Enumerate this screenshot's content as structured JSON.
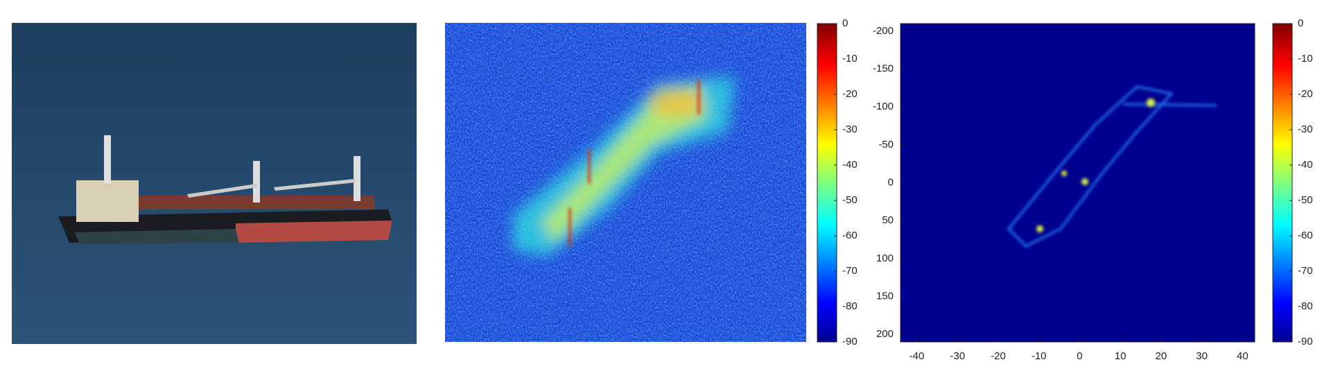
{
  "chart_data": [
    {
      "type": "heatmap",
      "colorbar": {
        "lim": [
          -90,
          0
        ],
        "ticks": [
          0,
          -10,
          -20,
          -30,
          -40,
          -50,
          -60,
          -70,
          -80,
          -90
        ]
      }
    },
    {
      "type": "heatmap",
      "xlim": [
        -44,
        43
      ],
      "xticks": [
        -40,
        -30,
        -20,
        -10,
        0,
        10,
        20,
        30,
        40
      ],
      "ylim": [
        210,
        -210
      ],
      "yticks": [
        -200,
        -150,
        -100,
        -50,
        0,
        50,
        100,
        150,
        200
      ],
      "colorbar": {
        "lim": [
          -90,
          0
        ],
        "ticks": [
          0,
          -10,
          -20,
          -30,
          -40,
          -50,
          -60,
          -70,
          -80,
          -90
        ]
      }
    }
  ]
}
